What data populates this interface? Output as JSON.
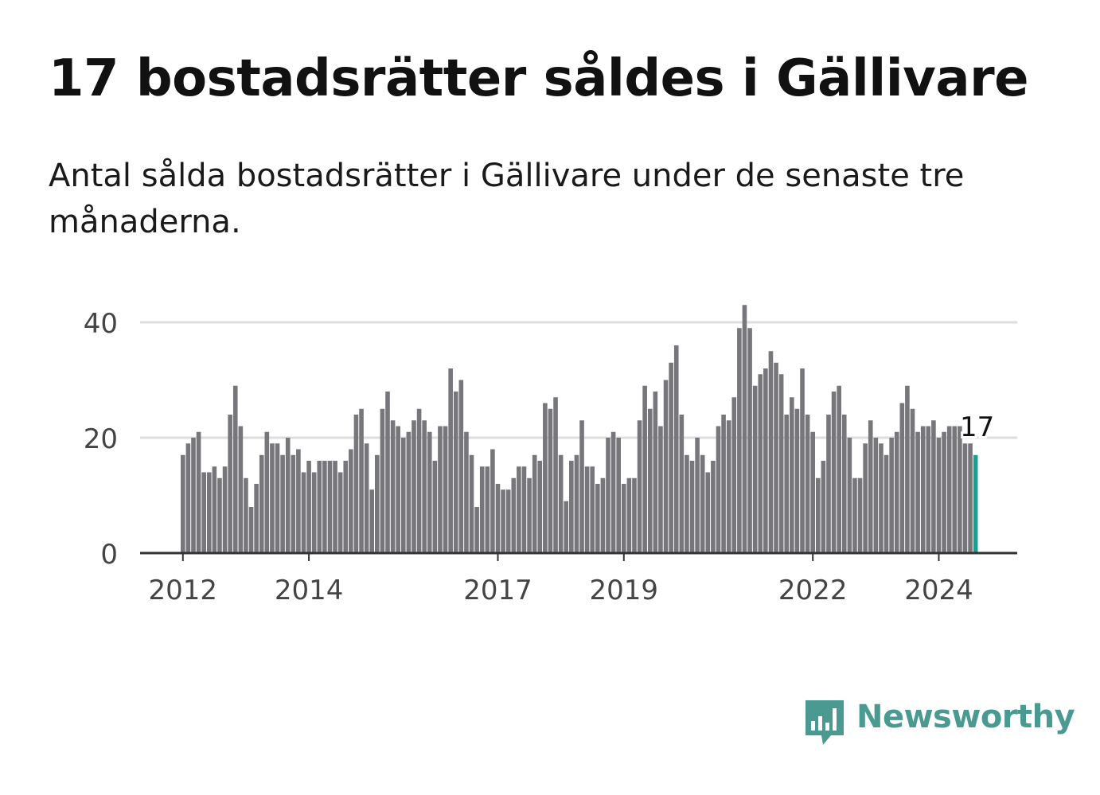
{
  "title": "17 bostadsrätter såldes i Gällivare",
  "subtitle": "Antal sålda bostadsrätter i Gällivare under de senaste tre månaderna.",
  "logo": {
    "text": "Newsworthy",
    "icon": "bar-chart-speech-bubble-icon"
  },
  "colors": {
    "bar": "#76767b",
    "highlight": "#1a9e8f",
    "grid": "#dddddd",
    "axis": "#333333",
    "tick_text": "#444444",
    "logo": "#4a9a92"
  },
  "chart_data": {
    "type": "bar",
    "title": "17 bostadsrätter såldes i Gällivare",
    "xlabel": "",
    "ylabel": "",
    "ylim": [
      0,
      40
    ],
    "yticks": [
      0,
      20,
      40
    ],
    "grid": true,
    "start": "2012-01",
    "frequency": "monthly",
    "xtick_labels": [
      {
        "label": "2012",
        "index": 0
      },
      {
        "label": "2014",
        "index": 24
      },
      {
        "label": "2017",
        "index": 60
      },
      {
        "label": "2019",
        "index": 84
      },
      {
        "label": "2022",
        "index": 120
      },
      {
        "label": "2024",
        "index": 144
      }
    ],
    "values": [
      17,
      19,
      20,
      21,
      14,
      14,
      15,
      13,
      15,
      24,
      29,
      22,
      13,
      8,
      12,
      17,
      21,
      19,
      19,
      17,
      20,
      17,
      18,
      14,
      16,
      14,
      16,
      16,
      16,
      16,
      14,
      16,
      18,
      24,
      25,
      19,
      11,
      17,
      25,
      28,
      23,
      22,
      20,
      21,
      23,
      25,
      23,
      21,
      16,
      22,
      22,
      32,
      28,
      30,
      21,
      17,
      8,
      15,
      15,
      18,
      12,
      11,
      11,
      13,
      15,
      15,
      13,
      17,
      16,
      26,
      25,
      27,
      17,
      9,
      16,
      17,
      23,
      15,
      15,
      12,
      13,
      20,
      21,
      20,
      12,
      13,
      13,
      23,
      29,
      25,
      28,
      22,
      30,
      33,
      36,
      24,
      17,
      16,
      20,
      17,
      14,
      16,
      22,
      24,
      23,
      27,
      39,
      43,
      39,
      29,
      31,
      32,
      35,
      33,
      31,
      24,
      27,
      25,
      32,
      24,
      21,
      13,
      16,
      24,
      28,
      29,
      24,
      20,
      13,
      13,
      19,
      23,
      20,
      19,
      17,
      20,
      21,
      26,
      29,
      25,
      21,
      22,
      22,
      23,
      20,
      21,
      22,
      22,
      22,
      19,
      19,
      17
    ],
    "highlight_index": 151,
    "highlight_label": "17"
  }
}
